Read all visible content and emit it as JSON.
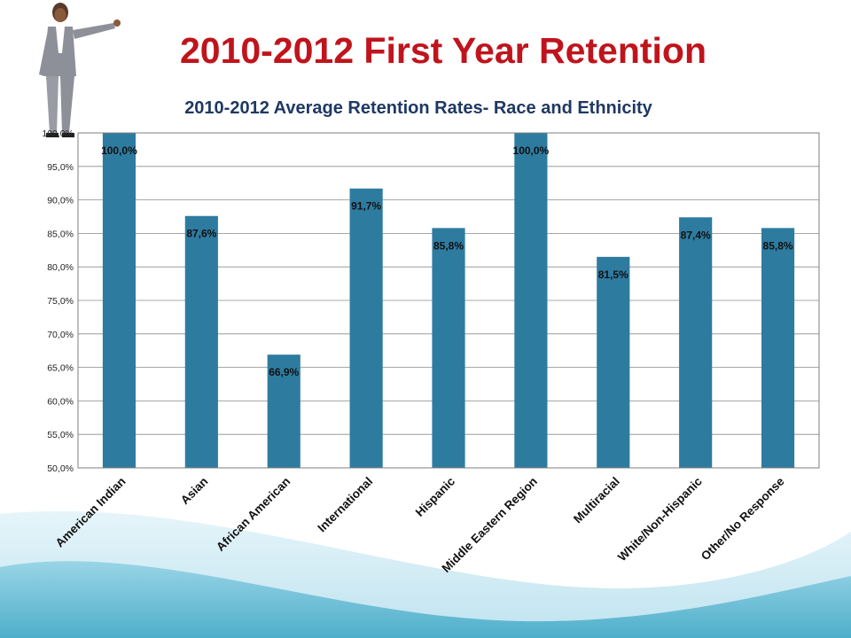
{
  "slide": {
    "title": "2010-2012 First Year Retention",
    "title_color": "#c0141c",
    "background_accent": "#3aa6c4",
    "decoration": "businesswoman-presenting-illustration"
  },
  "chart_data": {
    "type": "bar",
    "title": "2010-2012 Average Retention Rates- Race and Ethnicity",
    "title_color": "#1f3864",
    "bar_color": "#2e7ba0",
    "categories": [
      "American Indian",
      "Asian",
      "African American",
      "International",
      "Hispanic",
      "Middle Eastern Region",
      "Multiracial",
      "White/Non-Hispanic",
      "Other/No Response"
    ],
    "values": [
      100.0,
      87.6,
      66.9,
      91.7,
      85.8,
      100.0,
      81.5,
      87.4,
      85.8
    ],
    "data_labels": [
      "100,0%",
      "87,6%",
      "66,9%",
      "91,7%",
      "85,8%",
      "100,0%",
      "81,5%",
      "87,4%",
      "85,8%"
    ],
    "y_ticks": [
      50,
      55,
      60,
      65,
      70,
      75,
      80,
      85,
      90,
      95,
      100
    ],
    "y_tick_labels": [
      "50,0%",
      "55,0%",
      "60,0%",
      "65,0%",
      "70,0%",
      "75,0%",
      "80,0%",
      "85,0%",
      "90,0%",
      "95,0%",
      "100,0%"
    ],
    "ylim": [
      50,
      100
    ],
    "xlabel": "",
    "ylabel": "",
    "grid": true,
    "legend": "none"
  }
}
